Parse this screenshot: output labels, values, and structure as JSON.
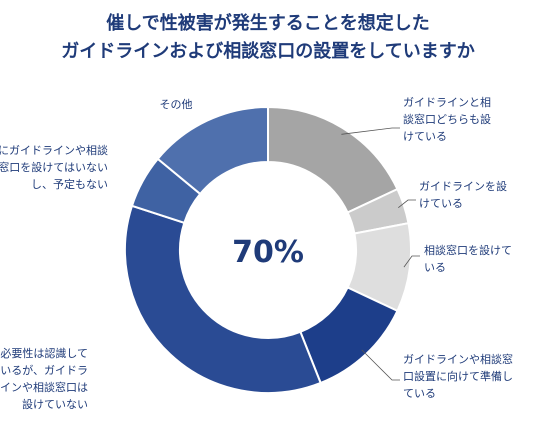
{
  "title": {
    "line1": "催しで性被害が発生することを想定した",
    "line2": "ガイドラインおよび相談窓口の設置をしていますか"
  },
  "center_label": "70%",
  "chart_data": {
    "type": "pie",
    "title": "催しで性被害が発生することを想定したガイドラインおよび相談窓口の設置をしていますか",
    "center_label": "70%",
    "slices": [
      {
        "name": "ガイドラインと相談窓口どちらも設けている",
        "label_lines": [
          "ガイドラインと相",
          "談窓口どちらも設",
          "けている"
        ],
        "value": 18,
        "color": "#a5a5a5"
      },
      {
        "name": "ガイドラインを設けている",
        "label_lines": [
          "ガイドラインを設",
          "けている"
        ],
        "value": 4,
        "color": "#cbcbcb"
      },
      {
        "name": "相談窓口を設けている",
        "label_lines": [
          "相談窓口を設けて",
          "いる"
        ],
        "value": 10,
        "color": "#dedede"
      },
      {
        "name": "ガイドラインや相談窓口設置に向けて準備している",
        "label_lines": [
          "ガイドラインや相談窓",
          "口設置に向けて準備し",
          "ている"
        ],
        "value": 12,
        "color": "#1d3e8a"
      },
      {
        "name": "必要性は認識しているが、ガイドラインや相談窓口は設けていない",
        "label_lines": [
          "必要性は認識して",
          "いるが、ガイドラ",
          "インや相談窓口は",
          "設けていない"
        ],
        "value": 36,
        "color": "#2a4b94"
      },
      {
        "name": "特にガイドラインや相談窓口を設けてはいないし、予定もない",
        "label_lines": [
          "特にガイドラインや相談",
          "窓口を設けてはいない",
          "し、予定もない"
        ],
        "value": 6,
        "color": "#3f62a3"
      },
      {
        "name": "その他",
        "label_lines": [
          "その他"
        ],
        "value": 14,
        "color": "#4f70ad"
      }
    ]
  }
}
